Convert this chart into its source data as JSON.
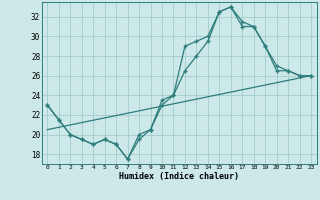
{
  "xlabel": "Humidex (Indice chaleur)",
  "xlim": [
    -0.5,
    23.5
  ],
  "ylim": [
    17.0,
    33.5
  ],
  "yticks": [
    18,
    20,
    22,
    24,
    26,
    28,
    30,
    32
  ],
  "xticks": [
    0,
    1,
    2,
    3,
    4,
    5,
    6,
    7,
    8,
    9,
    10,
    11,
    12,
    13,
    14,
    15,
    16,
    17,
    18,
    19,
    20,
    21,
    22,
    23
  ],
  "bg_color": "#cce8e8",
  "line_color": "#2e7d7d",
  "grid_color": "#a8d0d0",
  "line1_x": [
    0,
    1,
    2,
    3,
    4,
    5,
    6,
    7,
    8,
    9,
    10,
    11,
    12,
    13,
    14,
    15,
    16,
    17,
    18,
    19,
    20,
    21,
    22,
    23
  ],
  "line1_y": [
    23.0,
    21.5,
    20.0,
    19.5,
    19.0,
    19.5,
    19.0,
    17.5,
    20.0,
    20.5,
    23.5,
    24.0,
    26.5,
    28.0,
    29.5,
    32.5,
    33.0,
    31.5,
    31.0,
    29.0,
    26.5,
    26.5,
    26.0,
    26.0
  ],
  "line2_x": [
    0,
    1,
    2,
    3,
    4,
    5,
    6,
    7,
    8,
    9,
    10,
    11,
    12,
    13,
    14,
    15,
    16,
    17,
    18,
    19,
    20,
    21,
    22,
    23
  ],
  "line2_y": [
    23.0,
    21.5,
    20.0,
    19.5,
    19.0,
    19.5,
    19.0,
    17.5,
    19.5,
    20.5,
    23.0,
    24.0,
    29.0,
    29.5,
    30.0,
    32.5,
    33.0,
    31.0,
    31.0,
    29.0,
    27.0,
    26.5,
    26.0,
    26.0
  ],
  "line3_x": [
    0,
    23
  ],
  "line3_y": [
    20.5,
    26.0
  ]
}
